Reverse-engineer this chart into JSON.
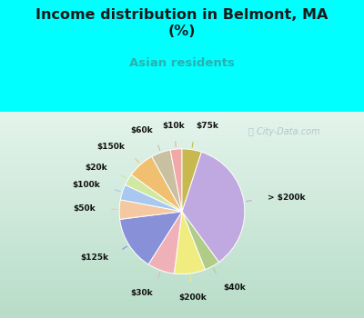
{
  "title": "Income distribution in Belmont, MA\n(%)",
  "subtitle": "Asian residents",
  "title_color": "#1a1a1a",
  "subtitle_color": "#2ab0b0",
  "background_color": "#00ffff",
  "chart_bg_grad_top": "#e8f5f0",
  "chart_bg_grad_bot": "#c8e8d8",
  "watermark": "City-Data.com",
  "labels": [
    "> $200k",
    "$40k",
    "$200k",
    "$30k",
    "$125k",
    "$50k",
    "$100k",
    "$20k",
    "$150k",
    "$60k",
    "$10k",
    "$75k"
  ],
  "values": [
    35,
    4,
    8,
    7,
    14,
    5,
    4,
    3,
    7,
    5,
    3,
    5
  ],
  "colors": [
    "#c0a8e0",
    "#b0cc88",
    "#f0ec80",
    "#f0b0b8",
    "#8890d8",
    "#f4c8a0",
    "#a8c8f0",
    "#d0e8a0",
    "#f0c070",
    "#c8c0a0",
    "#f0a8a8",
    "#c8b850"
  ],
  "start_angle": 72,
  "label_r": 1.38,
  "line_r": 1.12
}
